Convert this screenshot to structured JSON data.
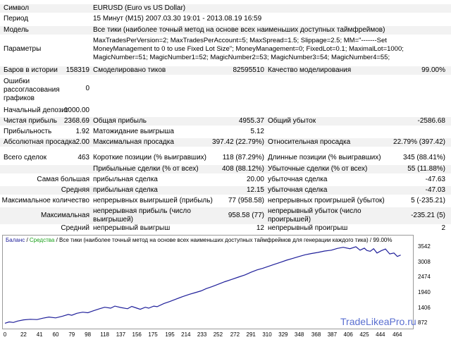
{
  "report": {
    "symbol": {
      "label": "Символ",
      "value": "EURUSD (Euro vs US Dollar)"
    },
    "period": {
      "label": "Период",
      "value": "15 Минут (M15) 2007.03.30 19:01 - 2013.08.19 16:59"
    },
    "model": {
      "label": "Модель",
      "value": "Все тики (наиболее точный метод на основе всех наименьших доступных таймфреймов)"
    },
    "params": {
      "label": "Параметры",
      "value": "MaxTradesPerVersion=2; MaxTradesPerAccount=5; MaxSpread=1.5; Slippage=2.5; MM=\"-------Set MoneyManagement to 0 to use Fixed Lot Size\"; MoneyManagement=0; FixedLot=0.1; MaximalLot=1000; MagicNumber=51; MagicNumber1=52; MagicNumber2=53; MagicNumber3=54; MagicNumber4=55;"
    },
    "bars": {
      "label": "Баров в истории",
      "value": "158319"
    },
    "ticks": {
      "label": "Смоделировано тиков",
      "value": "82595510"
    },
    "quality": {
      "label": "Качество моделирования",
      "value": "99.00%"
    },
    "errors": {
      "label": "Ошибки рассогласования графиков",
      "value": "0"
    },
    "deposit": {
      "label": "Начальный депозит",
      "value": "1000.00"
    },
    "net_profit": {
      "label": "Чистая прибыль",
      "value": "2368.69"
    },
    "gross_profit": {
      "label": "Общая прибыль",
      "value": "4955.37"
    },
    "gross_loss": {
      "label": "Общий убыток",
      "value": "-2586.68"
    },
    "profit_factor": {
      "label": "Прибыльность",
      "value": "1.92"
    },
    "expected_payoff": {
      "label": "Матожидание выигрыша",
      "value": "5.12"
    },
    "abs_dd": {
      "label": "Абсолютная просадка",
      "value": "2.00"
    },
    "max_dd": {
      "label": "Максимальная просадка",
      "value": "397.42 (22.79%)"
    },
    "rel_dd": {
      "label": "Относительная просадка",
      "value": "22.79% (397.42)"
    },
    "total_trades": {
      "label": "Всего сделок",
      "value": "463"
    },
    "short_pos": {
      "label": "Короткие позиции (% выигравших)",
      "value": "118 (87.29%)"
    },
    "long_pos": {
      "label": "Длинные позиции (% выигравших)",
      "value": "345 (88.41%)"
    },
    "profit_trades": {
      "label": "Прибыльные сделки (% от всех)",
      "value": "408 (88.12%)"
    },
    "loss_trades": {
      "label": "Убыточные сделки (% от всех)",
      "value": "55 (11.88%)"
    },
    "largest": {
      "label": "Самая большая",
      "p_label": "прибыльная сделка",
      "p_value": "20.00",
      "l_label": "убыточная сделка",
      "l_value": "-47.63"
    },
    "average": {
      "label": "Средняя",
      "p_label": "прибыльная сделка",
      "p_value": "12.15",
      "l_label": "убыточная сделка",
      "l_value": "-47.03"
    },
    "max_count": {
      "label": "Максимальное количество",
      "p_label": "непрерывных выигрышей (прибыль)",
      "p_value": "77 (958.58)",
      "l_label": "непрерывных проигрышей (убыток)",
      "l_value": "5 (-235.21)"
    },
    "maximal": {
      "label": "Максимальная",
      "p_label": "непрерывная прибыль (число выигрышей)",
      "p_value": "958.58 (77)",
      "l_label": "непрерывный убыток (число проигрышей)",
      "l_value": "-235.21 (5)"
    },
    "mean": {
      "label": "Средний",
      "p_label": "непрерывный выигрыш",
      "p_value": "12",
      "l_label": "непрерывный проигрыш",
      "l_value": "2"
    }
  },
  "chart": {
    "legend_balance": "Баланс",
    "legend_sep1": " / ",
    "legend_equity": "Средства",
    "legend_rest": " / Все тики (наиболее точный метод на основе всех наименьших доступных таймфреймов для генерации каждого тика) / 99.00%",
    "watermark": "TradeLikeaPro.ru",
    "colors": {
      "balance": "#1f1f9a",
      "equity": "#1aa01a",
      "watermark": "#5a6fd0"
    }
  },
  "chart_data": {
    "type": "line",
    "series": [
      {
        "name": "Баланс",
        "x": [
          0,
          5,
          10,
          15,
          22,
          30,
          38,
          45,
          52,
          60,
          68,
          75,
          79,
          85,
          92,
          98,
          105,
          112,
          118,
          125,
          130,
          137,
          145,
          150,
          156,
          160,
          166,
          170,
          176,
          180,
          188,
          195,
          202,
          210,
          218,
          225,
          232,
          238,
          245,
          252,
          260,
          268,
          276,
          284,
          291,
          298,
          305,
          312,
          319,
          326,
          333,
          340,
          348,
          355,
          362,
          370,
          378,
          386,
          393,
          400,
          408,
          415,
          420,
          425,
          428,
          432,
          436,
          440,
          445,
          450,
          455,
          460,
          464,
          468
        ],
        "y": [
          872,
          920,
          900,
          950,
          990,
          1010,
          1000,
          1050,
          1090,
          1060,
          1120,
          1180,
          1150,
          1220,
          1260,
          1240,
          1310,
          1380,
          1430,
          1400,
          1470,
          1420,
          1380,
          1460,
          1400,
          1360,
          1430,
          1400,
          1470,
          1450,
          1560,
          1630,
          1710,
          1800,
          1880,
          1940,
          2000,
          2080,
          2150,
          2230,
          2320,
          2400,
          2480,
          2560,
          2650,
          2730,
          2790,
          2860,
          2930,
          3000,
          3070,
          3130,
          3200,
          3260,
          3300,
          3340,
          3390,
          3420,
          3480,
          3520,
          3470,
          3540,
          3420,
          3490,
          3410,
          3380,
          3470,
          3320,
          3400,
          3460,
          3290,
          3320,
          3200,
          3250
        ]
      }
    ],
    "x_ticks": [
      0,
      22,
      41,
      60,
      79,
      98,
      118,
      137,
      156,
      175,
      195,
      214,
      233,
      252,
      272,
      291,
      310,
      329,
      348,
      368,
      387,
      406,
      425,
      444,
      464
    ],
    "y_ticks": [
      872,
      1406,
      1940,
      2474,
      3008,
      3542
    ],
    "xlim": [
      0,
      475
    ],
    "ylim": [
      760,
      3660
    ],
    "grid": false
  }
}
